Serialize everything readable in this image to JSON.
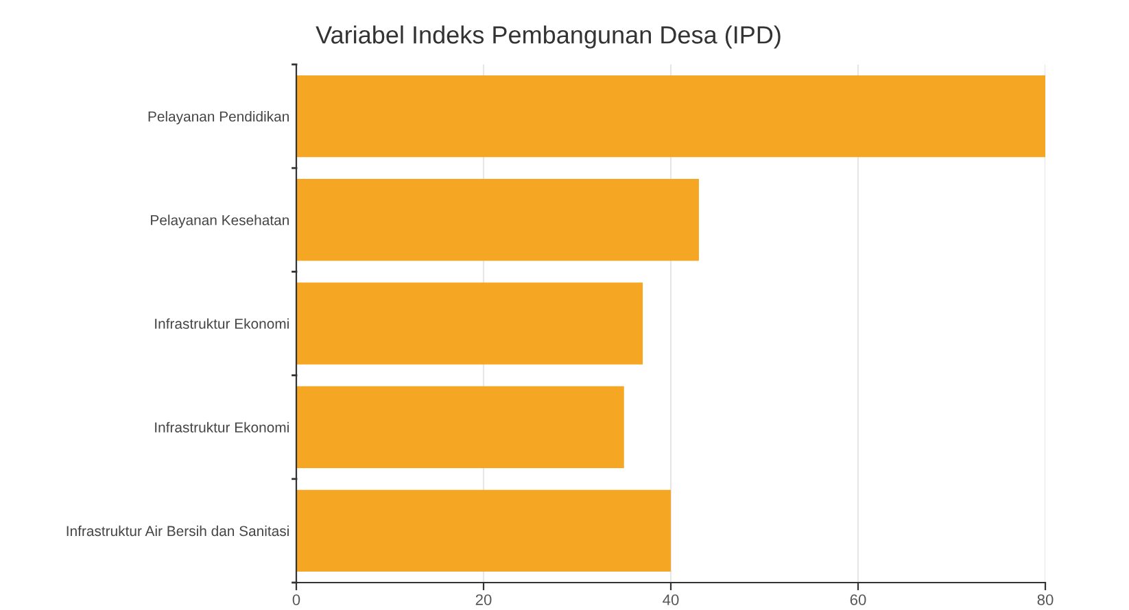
{
  "chart_data": {
    "type": "bar",
    "orientation": "horizontal",
    "title": "Variabel Indeks Pembangunan Desa (IPD)",
    "categories": [
      "Pelayanan Pendidikan",
      "Pelayanan Kesehatan",
      "Infrastruktur Ekonomi",
      "Infrastruktur Ekonomi",
      "Infrastruktur Air Bersih dan Sanitasi"
    ],
    "values": [
      80,
      43,
      37,
      35,
      40
    ],
    "color": "#f5a623",
    "xlim": [
      0,
      80
    ],
    "xticks": [
      0,
      20,
      40,
      60,
      80
    ],
    "grid": "x"
  }
}
